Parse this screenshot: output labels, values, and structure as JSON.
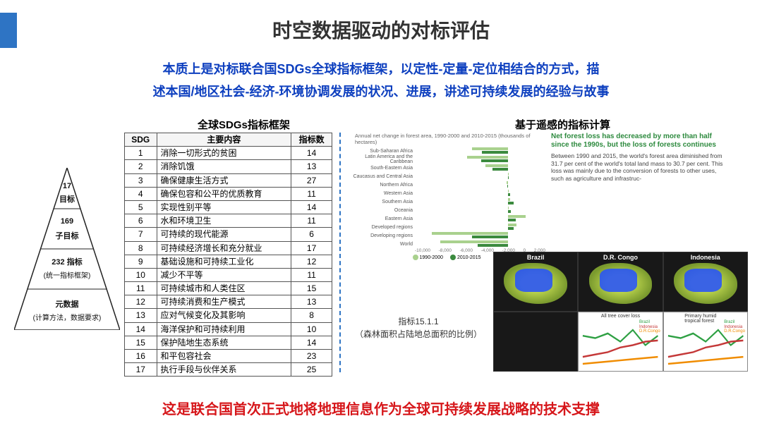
{
  "title": "时空数据驱动的对标评估",
  "subtitle_l1": "本质上是对标联合国SDGs全球指标框架，以定性-定量-定位相结合的方式，描",
  "subtitle_l2": "述本国/地区社会-经济-环境协调发展的状况、进展，讲述可持续发展的经验与故事",
  "section_left": "全球SDGs指标框架",
  "section_right": "基于遥感的指标计算",
  "pyramid": {
    "l1a": "17",
    "l1b": "目标",
    "l2a": "169",
    "l2b": "子目标",
    "l3a": "232 指标",
    "l3b": "(统一指标框架)",
    "l4a": "元数据",
    "l4b": "(计算方法，数据要求)"
  },
  "table": {
    "headers": [
      "SDG",
      "主要内容",
      "指标数"
    ],
    "rows": [
      [
        "1",
        "消除一切形式的贫困",
        "14"
      ],
      [
        "2",
        "消除饥饿",
        "13"
      ],
      [
        "3",
        "确保健康生活方式",
        "27"
      ],
      [
        "4",
        "确保包容和公平的优质教育",
        "11"
      ],
      [
        "5",
        "实现性别平等",
        "14"
      ],
      [
        "6",
        "水和环境卫生",
        "11"
      ],
      [
        "7",
        "可持续的现代能源",
        "6"
      ],
      [
        "8",
        "可持续经济增长和充分就业",
        "17"
      ],
      [
        "9",
        "基础设施和可持续工业化",
        "12"
      ],
      [
        "10",
        "减少不平等",
        "11"
      ],
      [
        "11",
        "可持续城市和人类住区",
        "15"
      ],
      [
        "12",
        "可持续消费和生产模式",
        "13"
      ],
      [
        "13",
        "应对气候变化及其影响",
        "8"
      ],
      [
        "14",
        "海洋保护和可持续利用",
        "10"
      ],
      [
        "15",
        "保护陆地生态系统",
        "14"
      ],
      [
        "16",
        "和平包容社会",
        "23"
      ],
      [
        "17",
        "执行手段与伙伴关系",
        "25"
      ]
    ]
  },
  "forest_chart": {
    "title": "Annual net change in forest area, 1990-2000 and 2010-2015 (thousands of hectares)",
    "regions": [
      "Sub-Saharan Africa",
      "Latin America and the Caribbean",
      "South-Eastern Asia",
      "Caucasus and Central Asia",
      "Northern Africa",
      "Western Asia",
      "Southern Asia",
      "Oceania",
      "Eastern Asia",
      "Developed regions",
      "Developing regions",
      "World"
    ],
    "s1": [
      -3900,
      -4400,
      -2400,
      100,
      -200,
      100,
      200,
      -50,
      1900,
      900,
      -8200,
      -7300
    ],
    "s2": [
      -2800,
      -2900,
      -1700,
      -50,
      -100,
      200,
      600,
      300,
      800,
      600,
      -3900,
      -3300
    ],
    "xmin": -10000,
    "xmax": 4000,
    "xticks": [
      "-10,000",
      "-8,000",
      "-6,000",
      "-4,000",
      "-2,000",
      "0",
      "2,000"
    ],
    "colors": {
      "s1": "#a9d18e",
      "s2": "#3b8a3e"
    },
    "legend": [
      "1990-2000",
      "2010-2015"
    ]
  },
  "forest_desc": {
    "headline": "Net forest loss has decreased by more than half since the 1990s, but the loss of forests continues",
    "body": "Between 1990 and 2015, the world's forest area diminished from 31.7 per cent of the world's total land mass to 30.7 per cent. This loss was mainly due to the conversion of forests to other uses, such as agriculture and infrastruc-"
  },
  "indicator": {
    "l1": "指标15.1.1",
    "l2": "（森林面积占陆地总面积的比例）"
  },
  "maps": {
    "countries": [
      "Brazil",
      "D.R. Congo",
      "Indonesia"
    ],
    "mini_titles": [
      "All tree cover loss",
      "Primary humid tropical forest"
    ],
    "line_colors": {
      "brazil": "#2ea043",
      "congo": "#f08c00",
      "indonesia": "#c43838"
    },
    "legend_labels": [
      "Brazil",
      "Indonesia",
      "D.R.Congo"
    ],
    "bg": "#181818",
    "land_color": "#b9d24c",
    "loss_color": "#2350ff"
  },
  "footer": "这是联合国首次正式地将地理信息作为全球可持续发展战略的技术支撑",
  "colors": {
    "accent": "#2e74c4",
    "subtitle": "#0d3fbf",
    "footer": "#d6161a"
  }
}
